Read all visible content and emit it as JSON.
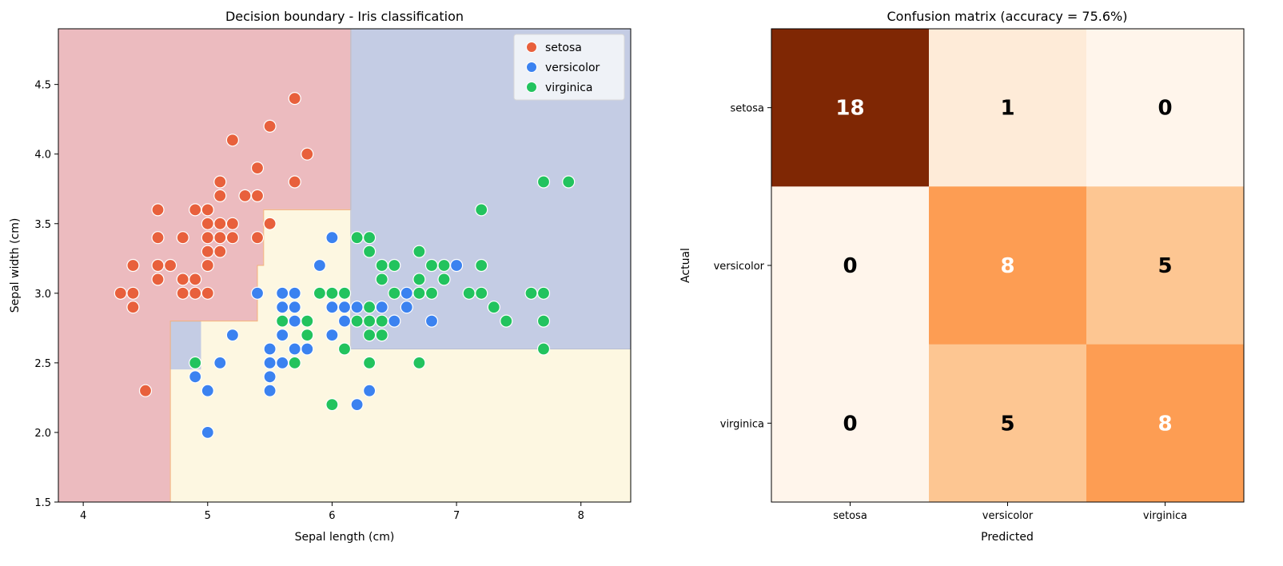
{
  "chart_data": [
    {
      "type": "scatter",
      "title": "Decision boundary - Iris classification",
      "xlabel": "Sepal length (cm)",
      "ylabel": "Sepal width (cm)",
      "xlim": [
        3.8,
        8.4
      ],
      "ylim": [
        1.5,
        4.9
      ],
      "xticks": [
        4,
        5,
        6,
        7,
        8
      ],
      "yticks": [
        1.5,
        2.0,
        2.5,
        3.0,
        3.5,
        4.0,
        4.5
      ],
      "grid": false,
      "legend_position": "top-right",
      "regions": [
        {
          "class": "setosa",
          "color": "#ecbbbf",
          "polygon": [
            [
              3.8,
              1.5
            ],
            [
              4.7,
              1.5
            ],
            [
              4.7,
              2.8
            ],
            [
              5.4,
              2.8
            ],
            [
              5.4,
              3.2
            ],
            [
              5.45,
              3.2
            ],
            [
              5.45,
              3.6
            ],
            [
              6.15,
              3.6
            ],
            [
              6.15,
              4.9
            ],
            [
              3.8,
              4.9
            ]
          ]
        },
        {
          "class": "versicolor",
          "color": "#c4cce4",
          "polygon": [
            [
              6.15,
              4.9
            ],
            [
              8.4,
              4.9
            ],
            [
              8.4,
              2.6
            ],
            [
              6.15,
              2.6
            ]
          ]
        },
        {
          "class": "versicolor",
          "color": "#c4cce4",
          "polygon": [
            [
              4.7,
              2.45
            ],
            [
              4.95,
              2.45
            ],
            [
              4.95,
              2.8
            ],
            [
              4.7,
              2.8
            ]
          ]
        },
        {
          "class": "virginica",
          "color": "#fdf7e1",
          "polygon": [
            [
              4.7,
              1.5
            ],
            [
              8.4,
              1.5
            ],
            [
              8.4,
              2.6
            ],
            [
              6.15,
              2.6
            ],
            [
              6.15,
              3.6
            ],
            [
              5.45,
              3.6
            ],
            [
              5.45,
              3.2
            ],
            [
              5.4,
              3.2
            ],
            [
              5.4,
              2.8
            ],
            [
              4.95,
              2.8
            ],
            [
              4.95,
              2.45
            ],
            [
              4.7,
              2.45
            ]
          ]
        }
      ],
      "series": [
        {
          "name": "setosa",
          "color": "#e8603c",
          "points": [
            [
              4.3,
              3.0
            ],
            [
              4.4,
              3.0
            ],
            [
              4.4,
              2.9
            ],
            [
              4.4,
              3.2
            ],
            [
              4.5,
              2.3
            ],
            [
              4.6,
              3.1
            ],
            [
              4.6,
              3.2
            ],
            [
              4.6,
              3.4
            ],
            [
              4.6,
              3.6
            ],
            [
              4.7,
              3.2
            ],
            [
              4.8,
              3.0
            ],
            [
              4.8,
              3.1
            ],
            [
              4.8,
              3.4
            ],
            [
              4.9,
              3.0
            ],
            [
              4.9,
              3.1
            ],
            [
              4.9,
              3.6
            ],
            [
              5.0,
              3.0
            ],
            [
              5.0,
              3.2
            ],
            [
              5.0,
              3.3
            ],
            [
              5.0,
              3.4
            ],
            [
              5.0,
              3.5
            ],
            [
              5.0,
              3.6
            ],
            [
              5.1,
              3.3
            ],
            [
              5.1,
              3.4
            ],
            [
              5.1,
              3.5
            ],
            [
              5.1,
              3.7
            ],
            [
              5.1,
              3.8
            ],
            [
              5.2,
              3.4
            ],
            [
              5.2,
              3.5
            ],
            [
              5.2,
              4.1
            ],
            [
              5.3,
              3.7
            ],
            [
              5.4,
              3.4
            ],
            [
              5.4,
              3.7
            ],
            [
              5.4,
              3.9
            ],
            [
              5.5,
              3.5
            ],
            [
              5.5,
              4.2
            ],
            [
              5.7,
              3.8
            ],
            [
              5.7,
              4.4
            ],
            [
              5.8,
              4.0
            ]
          ]
        },
        {
          "name": "versicolor",
          "color": "#3b82f0",
          "points": [
            [
              4.9,
              2.4
            ],
            [
              5.0,
              2.0
            ],
            [
              5.0,
              2.3
            ],
            [
              5.1,
              2.5
            ],
            [
              5.2,
              2.7
            ],
            [
              5.4,
              3.0
            ],
            [
              5.5,
              2.3
            ],
            [
              5.5,
              2.4
            ],
            [
              5.5,
              2.5
            ],
            [
              5.5,
              2.6
            ],
            [
              5.6,
              2.5
            ],
            [
              5.6,
              2.7
            ],
            [
              5.6,
              2.9
            ],
            [
              5.6,
              3.0
            ],
            [
              5.7,
              2.6
            ],
            [
              5.7,
              2.8
            ],
            [
              5.7,
              2.9
            ],
            [
              5.7,
              3.0
            ],
            [
              5.8,
              2.6
            ],
            [
              5.8,
              2.7
            ],
            [
              5.9,
              3.2
            ],
            [
              6.0,
              2.7
            ],
            [
              6.0,
              2.9
            ],
            [
              6.0,
              3.4
            ],
            [
              6.1,
              2.8
            ],
            [
              6.1,
              2.9
            ],
            [
              6.1,
              3.0
            ],
            [
              6.2,
              2.2
            ],
            [
              6.2,
              2.9
            ],
            [
              6.3,
              2.3
            ],
            [
              6.3,
              2.5
            ],
            [
              6.3,
              2.8
            ],
            [
              6.4,
              2.9
            ],
            [
              6.5,
              2.8
            ],
            [
              6.6,
              2.9
            ],
            [
              6.6,
              3.0
            ],
            [
              6.7,
              3.0
            ],
            [
              6.8,
              2.8
            ],
            [
              7.0,
              3.2
            ]
          ]
        },
        {
          "name": "virginica",
          "color": "#22c35e",
          "points": [
            [
              4.9,
              2.5
            ],
            [
              5.6,
              2.8
            ],
            [
              5.7,
              2.5
            ],
            [
              5.8,
              2.7
            ],
            [
              5.8,
              2.8
            ],
            [
              5.9,
              3.0
            ],
            [
              6.0,
              2.2
            ],
            [
              6.0,
              3.0
            ],
            [
              6.1,
              2.6
            ],
            [
              6.1,
              3.0
            ],
            [
              6.2,
              2.8
            ],
            [
              6.2,
              3.4
            ],
            [
              6.3,
              2.5
            ],
            [
              6.3,
              2.7
            ],
            [
              6.3,
              2.8
            ],
            [
              6.3,
              2.9
            ],
            [
              6.3,
              3.3
            ],
            [
              6.3,
              3.4
            ],
            [
              6.4,
              2.7
            ],
            [
              6.4,
              2.8
            ],
            [
              6.4,
              3.1
            ],
            [
              6.4,
              3.2
            ],
            [
              6.5,
              3.0
            ],
            [
              6.5,
              3.2
            ],
            [
              6.7,
              2.5
            ],
            [
              6.7,
              3.0
            ],
            [
              6.7,
              3.1
            ],
            [
              6.7,
              3.3
            ],
            [
              6.8,
              3.0
            ],
            [
              6.8,
              3.2
            ],
            [
              6.9,
              3.1
            ],
            [
              6.9,
              3.2
            ],
            [
              7.1,
              3.0
            ],
            [
              7.2,
              3.0
            ],
            [
              7.2,
              3.2
            ],
            [
              7.2,
              3.6
            ],
            [
              7.3,
              2.9
            ],
            [
              7.4,
              2.8
            ],
            [
              7.6,
              3.0
            ],
            [
              7.7,
              2.6
            ],
            [
              7.7,
              2.8
            ],
            [
              7.7,
              3.0
            ],
            [
              7.7,
              3.8
            ],
            [
              7.9,
              3.8
            ]
          ]
        }
      ]
    },
    {
      "type": "heatmap",
      "title": "Confusion matrix (accuracy = 75.6%)",
      "xlabel": "Predicted",
      "ylabel": "Actual",
      "x_categories": [
        "setosa",
        "versicolor",
        "virginica"
      ],
      "y_categories": [
        "setosa",
        "versicolor",
        "virginica"
      ],
      "values": [
        [
          18,
          1,
          0
        ],
        [
          0,
          8,
          5
        ],
        [
          0,
          5,
          8
        ]
      ],
      "cell_colors": [
        [
          "#7f2704",
          "#feebd8",
          "#fff5eb"
        ],
        [
          "#fff5eb",
          "#fd9d53",
          "#fdc692"
        ],
        [
          "#fff5eb",
          "#fdc692",
          "#fd9d53"
        ]
      ],
      "text_colors": [
        [
          "#ffffff",
          "#000000",
          "#000000"
        ],
        [
          "#000000",
          "#ffffff",
          "#000000"
        ],
        [
          "#000000",
          "#000000",
          "#ffffff"
        ]
      ]
    }
  ]
}
